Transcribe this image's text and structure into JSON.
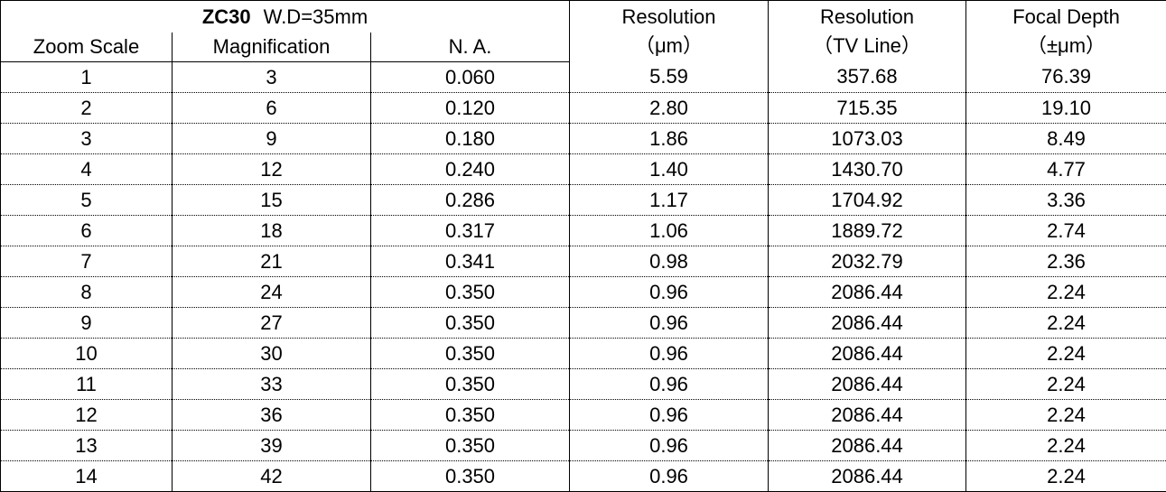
{
  "header": {
    "model": "ZC30",
    "working_distance": "W.D=35mm",
    "columns": [
      {
        "label": "Zoom Scale"
      },
      {
        "label": "Magnification"
      },
      {
        "label": "N. A."
      },
      {
        "label": "Resolution",
        "unit": "（μm）"
      },
      {
        "label": "Resolution",
        "unit": "（TV Line）"
      },
      {
        "label": "Focal Depth",
        "unit": "（±μm）"
      }
    ]
  },
  "table": {
    "rows": [
      [
        "1",
        "3",
        "0.060",
        "5.59",
        "357.68",
        "76.39"
      ],
      [
        "2",
        "6",
        "0.120",
        "2.80",
        "715.35",
        "19.10"
      ],
      [
        "3",
        "9",
        "0.180",
        "1.86",
        "1073.03",
        "8.49"
      ],
      [
        "4",
        "12",
        "0.240",
        "1.40",
        "1430.70",
        "4.77"
      ],
      [
        "5",
        "15",
        "0.286",
        "1.17",
        "1704.92",
        "3.36"
      ],
      [
        "6",
        "18",
        "0.317",
        "1.06",
        "1889.72",
        "2.74"
      ],
      [
        "7",
        "21",
        "0.341",
        "0.98",
        "2032.79",
        "2.36"
      ],
      [
        "8",
        "24",
        "0.350",
        "0.96",
        "2086.44",
        "2.24"
      ],
      [
        "9",
        "27",
        "0.350",
        "0.96",
        "2086.44",
        "2.24"
      ],
      [
        "10",
        "30",
        "0.350",
        "0.96",
        "2086.44",
        "2.24"
      ],
      [
        "11",
        "33",
        "0.350",
        "0.96",
        "2086.44",
        "2.24"
      ],
      [
        "12",
        "36",
        "0.350",
        "0.96",
        "2086.44",
        "2.24"
      ],
      [
        "13",
        "39",
        "0.350",
        "0.96",
        "2086.44",
        "2.24"
      ],
      [
        "14",
        "42",
        "0.350",
        "0.96",
        "2086.44",
        "2.24"
      ]
    ]
  }
}
